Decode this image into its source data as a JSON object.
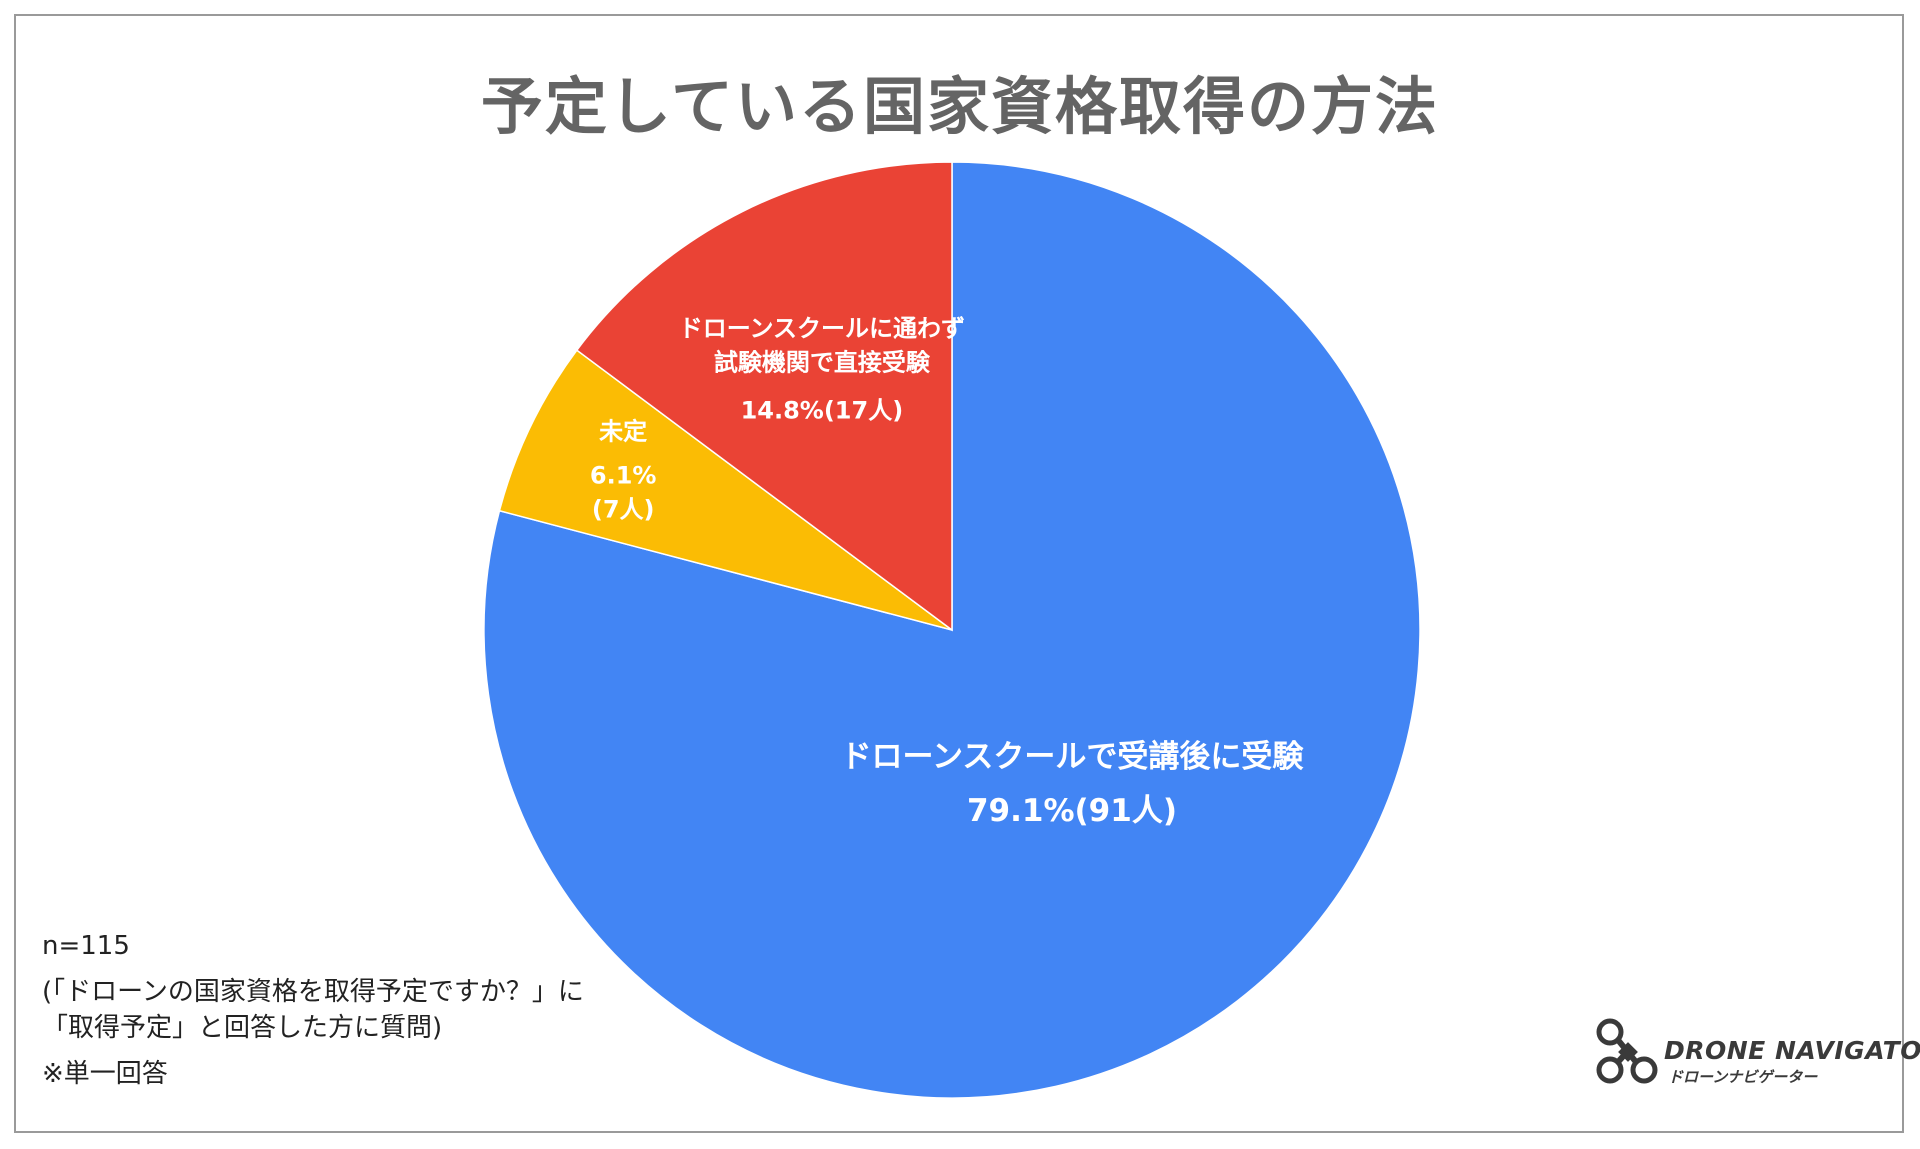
{
  "chart_data": {
    "type": "pie",
    "title": "予定している国家資格取得の方法",
    "slices": [
      {
        "name": "ドローンスクールで受講後に受験",
        "label_lines": [
          "ドローンスクールで受講後に受験"
        ],
        "value_label": "79.1%(91人)",
        "percent": 79.1,
        "count": 91,
        "color": "#4285f4"
      },
      {
        "name": "未定",
        "label_lines": [
          "未定"
        ],
        "value_label": "6.1%\n(7人)",
        "percent": 6.1,
        "count": 7,
        "color": "#fbbc04"
      },
      {
        "name": "ドローンスクールに通わず試験機関で直接受験",
        "label_lines": [
          "ドローンスクールに通わず",
          "試験機関で直接受験"
        ],
        "value_label": "14.8%(17人)",
        "percent": 14.8,
        "count": 17,
        "color": "#ea4335"
      }
    ]
  },
  "notes": {
    "n": "n=115",
    "question_line1": "(「ドローンの国家資格を取得予定ですか？」に",
    "question_line2": "「取得予定」と回答した方に質問)",
    "answer_type": "※単一回答"
  },
  "logo": {
    "name": "DRONE NAVIGATOR",
    "name_jp": "ドローンナビゲーター"
  }
}
